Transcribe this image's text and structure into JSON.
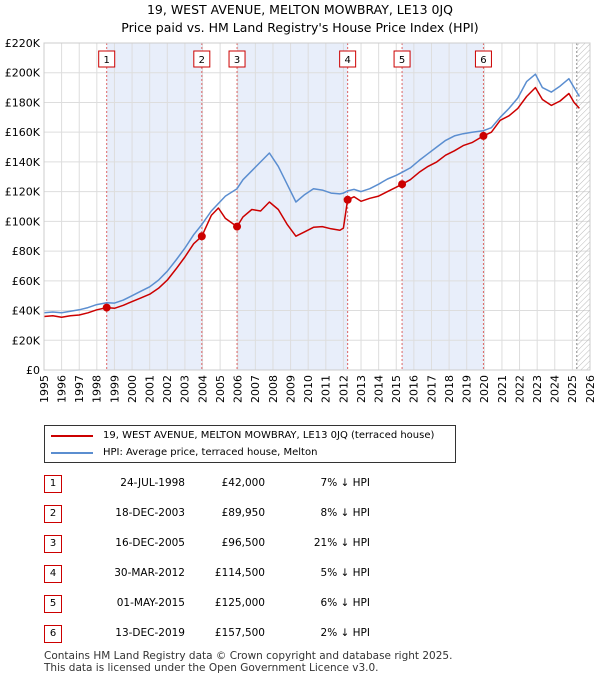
{
  "chart_data": {
    "type": "line",
    "title": "19, WEST AVENUE, MELTON MOWBRAY, LE13 0JQ",
    "subtitle": "Price paid vs. HM Land Registry's House Price Index (HPI)",
    "xlim": [
      1995,
      2026
    ],
    "ylim": [
      0,
      220000
    ],
    "x_ticks": [
      "1995",
      "1996",
      "1997",
      "1998",
      "1999",
      "2000",
      "2001",
      "2002",
      "2003",
      "2004",
      "2005",
      "2006",
      "2007",
      "2008",
      "2009",
      "2010",
      "2011",
      "2012",
      "2013",
      "2014",
      "2015",
      "2016",
      "2017",
      "2018",
      "2019",
      "2020",
      "2021",
      "2022",
      "2023",
      "2024",
      "2025",
      "2026"
    ],
    "y_ticks": [
      {
        "value": 0,
        "label": "£0"
      },
      {
        "value": 20000,
        "label": "£20K"
      },
      {
        "value": 40000,
        "label": "£40K"
      },
      {
        "value": 60000,
        "label": "£60K"
      },
      {
        "value": 80000,
        "label": "£80K"
      },
      {
        "value": 100000,
        "label": "£100K"
      },
      {
        "value": 120000,
        "label": "£120K"
      },
      {
        "value": 140000,
        "label": "£140K"
      },
      {
        "value": 160000,
        "label": "£160K"
      },
      {
        "value": 180000,
        "label": "£180K"
      },
      {
        "value": 200000,
        "label": "£200K"
      },
      {
        "value": 220000,
        "label": "£220K"
      }
    ],
    "grid": true,
    "forecast_start": 2025.25,
    "series": [
      {
        "name": "19, WEST AVENUE, MELTON MOWBRAY, LE13 0JQ (terraced house)",
        "color": "#cc0000",
        "points": [
          [
            1995.0,
            36000
          ],
          [
            1995.5,
            36500
          ],
          [
            1996.0,
            35500
          ],
          [
            1996.5,
            36500
          ],
          [
            1997.0,
            37000
          ],
          [
            1997.5,
            38500
          ],
          [
            1998.0,
            40500
          ],
          [
            1998.56,
            42000
          ],
          [
            1999.0,
            41500
          ],
          [
            1999.5,
            43500
          ],
          [
            2000.0,
            46000
          ],
          [
            2000.5,
            48500
          ],
          [
            2001.0,
            51000
          ],
          [
            2001.5,
            55000
          ],
          [
            2002.0,
            60500
          ],
          [
            2002.5,
            68000
          ],
          [
            2003.0,
            76000
          ],
          [
            2003.5,
            85000
          ],
          [
            2003.96,
            89950
          ],
          [
            2004.5,
            104000
          ],
          [
            2004.9,
            109000
          ],
          [
            2005.3,
            102000
          ],
          [
            2005.96,
            96500
          ],
          [
            2006.3,
            103000
          ],
          [
            2006.8,
            108000
          ],
          [
            2007.3,
            107000
          ],
          [
            2007.8,
            113000
          ],
          [
            2008.3,
            108000
          ],
          [
            2008.8,
            98000
          ],
          [
            2009.3,
            90000
          ],
          [
            2009.8,
            93000
          ],
          [
            2010.3,
            96000
          ],
          [
            2010.8,
            96500
          ],
          [
            2011.3,
            95000
          ],
          [
            2011.8,
            94000
          ],
          [
            2012.0,
            95500
          ],
          [
            2012.24,
            114500
          ],
          [
            2012.6,
            116500
          ],
          [
            2013.0,
            113500
          ],
          [
            2013.5,
            115500
          ],
          [
            2014.0,
            117000
          ],
          [
            2014.5,
            120000
          ],
          [
            2015.0,
            123000
          ],
          [
            2015.33,
            125000
          ],
          [
            2015.8,
            128000
          ],
          [
            2016.3,
            133000
          ],
          [
            2016.8,
            137000
          ],
          [
            2017.3,
            140000
          ],
          [
            2017.8,
            144500
          ],
          [
            2018.3,
            147500
          ],
          [
            2018.8,
            151000
          ],
          [
            2019.3,
            153000
          ],
          [
            2019.95,
            157500
          ],
          [
            2020.4,
            160000
          ],
          [
            2020.9,
            168000
          ],
          [
            2021.4,
            171000
          ],
          [
            2021.9,
            176000
          ],
          [
            2022.4,
            184000
          ],
          [
            2022.9,
            190000
          ],
          [
            2023.3,
            182000
          ],
          [
            2023.8,
            178000
          ],
          [
            2024.3,
            181000
          ],
          [
            2024.8,
            186000
          ],
          [
            2025.1,
            180000
          ],
          [
            2025.4,
            176000
          ]
        ]
      },
      {
        "name": "HPI: Average price, terraced house, Melton",
        "color": "#5b8ed0",
        "points": [
          [
            1995.0,
            38500
          ],
          [
            1995.5,
            39000
          ],
          [
            1996.0,
            38500
          ],
          [
            1996.5,
            39500
          ],
          [
            1997.0,
            40500
          ],
          [
            1997.5,
            42000
          ],
          [
            1998.0,
            44000
          ],
          [
            1998.56,
            45200
          ],
          [
            1999.0,
            45000
          ],
          [
            1999.5,
            47000
          ],
          [
            2000.0,
            50000
          ],
          [
            2000.5,
            53000
          ],
          [
            2001.0,
            56000
          ],
          [
            2001.5,
            60500
          ],
          [
            2002.0,
            66500
          ],
          [
            2002.5,
            74000
          ],
          [
            2003.0,
            82000
          ],
          [
            2003.5,
            91000
          ],
          [
            2003.96,
            97800
          ],
          [
            2004.5,
            107000
          ],
          [
            2004.9,
            112000
          ],
          [
            2005.3,
            117000
          ],
          [
            2005.96,
            122000
          ],
          [
            2006.3,
            128000
          ],
          [
            2006.8,
            134000
          ],
          [
            2007.3,
            140000
          ],
          [
            2007.8,
            146000
          ],
          [
            2008.3,
            137000
          ],
          [
            2008.8,
            125000
          ],
          [
            2009.3,
            113000
          ],
          [
            2009.8,
            118000
          ],
          [
            2010.3,
            122000
          ],
          [
            2010.8,
            121000
          ],
          [
            2011.3,
            119000
          ],
          [
            2011.8,
            118500
          ],
          [
            2012.0,
            119000
          ],
          [
            2012.24,
            120500
          ],
          [
            2012.6,
            121500
          ],
          [
            2013.0,
            120000
          ],
          [
            2013.5,
            122000
          ],
          [
            2014.0,
            125000
          ],
          [
            2014.5,
            128500
          ],
          [
            2015.0,
            131000
          ],
          [
            2015.33,
            133000
          ],
          [
            2015.8,
            136000
          ],
          [
            2016.3,
            141000
          ],
          [
            2016.8,
            145500
          ],
          [
            2017.3,
            150000
          ],
          [
            2017.8,
            154500
          ],
          [
            2018.3,
            157500
          ],
          [
            2018.8,
            159000
          ],
          [
            2019.3,
            160000
          ],
          [
            2019.95,
            161000
          ],
          [
            2020.4,
            163000
          ],
          [
            2020.9,
            170000
          ],
          [
            2021.4,
            176000
          ],
          [
            2021.9,
            183000
          ],
          [
            2022.4,
            194000
          ],
          [
            2022.9,
            199000
          ],
          [
            2023.3,
            190000
          ],
          [
            2023.8,
            187000
          ],
          [
            2024.3,
            191000
          ],
          [
            2024.8,
            196000
          ],
          [
            2025.1,
            190000
          ],
          [
            2025.4,
            184000
          ]
        ]
      }
    ],
    "sales": [
      {
        "num": "1",
        "x": 1998.56,
        "y": 42000,
        "date": "24-JUL-1998",
        "price": "£42,000",
        "hpi": "7% ↓ HPI"
      },
      {
        "num": "2",
        "x": 2003.96,
        "y": 89950,
        "date": "18-DEC-2003",
        "price": "£89,950",
        "hpi": "8% ↓ HPI"
      },
      {
        "num": "3",
        "x": 2005.96,
        "y": 96500,
        "date": "16-DEC-2005",
        "price": "£96,500",
        "hpi": "21% ↓ HPI"
      },
      {
        "num": "4",
        "x": 2012.24,
        "y": 114500,
        "date": "30-MAR-2012",
        "price": "£114,500",
        "hpi": "5% ↓ HPI"
      },
      {
        "num": "5",
        "x": 2015.33,
        "y": 125000,
        "date": "01-MAY-2015",
        "price": "£125,000",
        "hpi": "6% ↓ HPI"
      },
      {
        "num": "6",
        "x": 2019.95,
        "y": 157500,
        "date": "13-DEC-2019",
        "price": "£157,500",
        "hpi": "2% ↓ HPI"
      }
    ],
    "shaded_periods": [
      [
        1998.56,
        2003.96
      ],
      [
        2005.96,
        2012.24
      ],
      [
        2015.33,
        2019.95
      ]
    ]
  },
  "legend": {
    "property_label": "19, WEST AVENUE, MELTON MOWBRAY, LE13 0JQ (terraced house)",
    "hpi_label": "HPI: Average price, terraced house, Melton"
  },
  "footer": {
    "line1": "Contains HM Land Registry data © Crown copyright and database right 2025.",
    "line2": "This data is licensed under the Open Government Licence v3.0."
  }
}
